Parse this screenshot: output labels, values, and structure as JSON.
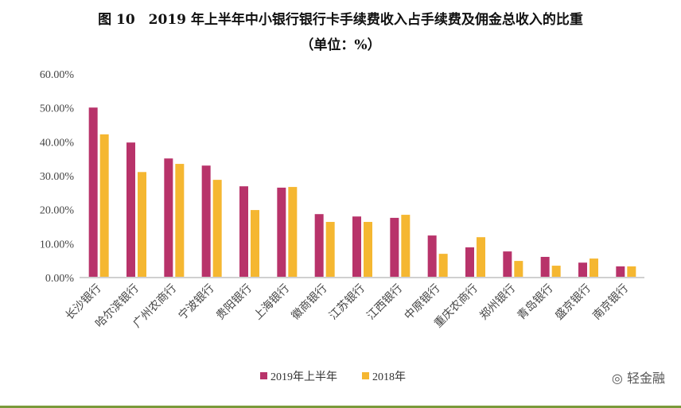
{
  "chart_data": {
    "type": "bar",
    "title": "图 10　2019 年上半年中小银行银行卡手续费收入占手续费及佣金总收入的比重",
    "subtitle": "（单位：%）",
    "categories": [
      "长沙银行",
      "哈尔滨银行",
      "广州农商行",
      "宁波银行",
      "贵阳银行",
      "上海银行",
      "徽商银行",
      "江苏银行",
      "江西银行",
      "中原银行",
      "重庆农商行",
      "郑州银行",
      "青岛银行",
      "盛京银行",
      "南京银行"
    ],
    "series": [
      {
        "name": "2019年上半年",
        "color": "#b8336a",
        "values": [
          50.1,
          39.8,
          35.1,
          33.0,
          26.9,
          26.5,
          18.7,
          18.0,
          17.6,
          12.4,
          8.9,
          7.7,
          6.1,
          4.4,
          3.3
        ]
      },
      {
        "name": "2018年",
        "color": "#f5b731",
        "values": [
          42.2,
          31.1,
          33.5,
          28.8,
          19.9,
          26.7,
          16.4,
          16.4,
          18.5,
          7.0,
          11.9,
          4.9,
          3.5,
          5.6,
          3.3
        ]
      }
    ],
    "ylim": [
      0,
      60
    ],
    "yticks": [
      "0.00%",
      "10.00%",
      "20.00%",
      "30.00%",
      "40.00%",
      "50.00%",
      "60.00%"
    ],
    "legend": "bottom",
    "grid": false
  },
  "watermark": "轻金融"
}
